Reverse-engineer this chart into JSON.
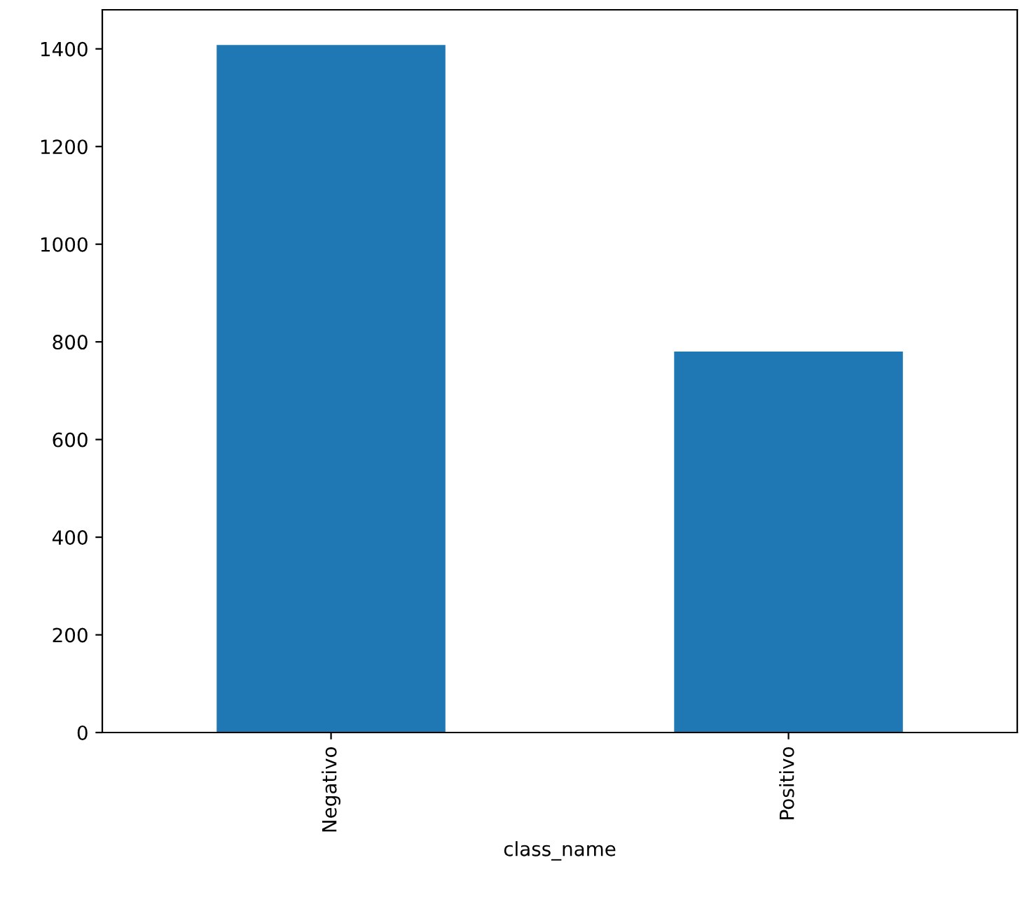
{
  "chart_data": {
    "type": "bar",
    "xlabel": "class_name",
    "categories": [
      "Negativo",
      "Positivo"
    ],
    "values": [
      1408,
      780
    ],
    "color": "#1f77b4",
    "ylim": [
      0,
      1480
    ],
    "yticks": [
      0,
      200,
      400,
      600,
      800,
      1000,
      1200,
      1400
    ],
    "grid": false,
    "legend": false
  }
}
